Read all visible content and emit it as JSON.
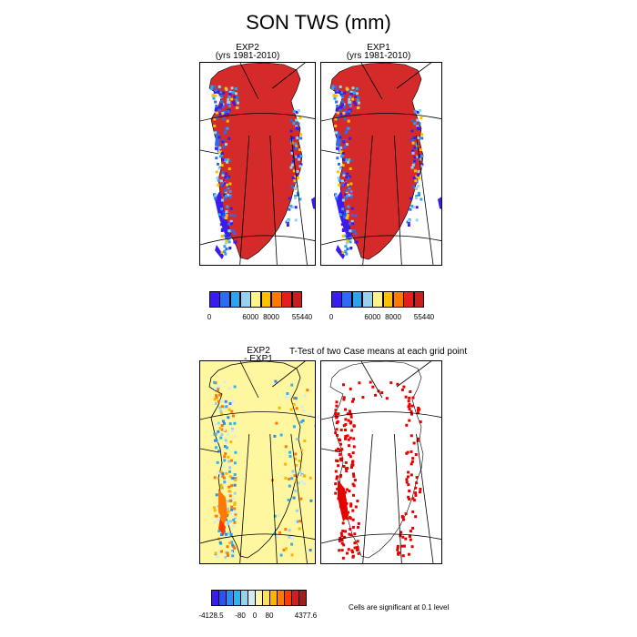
{
  "title": "SON TWS (mm)",
  "panels": {
    "exp2": {
      "title": "EXP2",
      "subtitle": "(yrs 1981-2010)"
    },
    "exp1": {
      "title": "EXP1",
      "subtitle": "(yrs 1981-2010)"
    },
    "diff": {
      "title": "EXP2",
      "subtitle": "- EXP1"
    },
    "ttest": {
      "title": "T-Test of two Case means at each grid point"
    }
  },
  "colors": {
    "ice": "#d42a2a",
    "abs_scale": [
      "#3a1cf0",
      "#2c6cf0",
      "#2ca4f0",
      "#96d2f0",
      "#fff48c",
      "#ffc000",
      "#ff7800",
      "#e61e1e",
      "#c81e1e"
    ],
    "diff_scale": [
      "#3a1cf0",
      "#2c52f0",
      "#2c8cf0",
      "#2cb4f0",
      "#96d2f0",
      "#d2ebf5",
      "#fff8a0",
      "#ffe05a",
      "#ffb400",
      "#ff7800",
      "#ff3c00",
      "#d21e1e",
      "#a01e1e"
    ],
    "diff_base": "#fff7a0",
    "significant": "#e60000"
  },
  "chart_data": [
    {
      "type": "heatmap",
      "name": "EXP2",
      "title": "EXP2",
      "subtitle": "(yrs 1981-2010)",
      "colorbar": {
        "ticks": [
          "0",
          "6000",
          "8000",
          "55440"
        ],
        "min": 0,
        "max": 55440
      }
    },
    {
      "type": "heatmap",
      "name": "EXP1",
      "title": "EXP1",
      "subtitle": "(yrs 1981-2010)",
      "colorbar": {
        "ticks": [
          "0",
          "6000",
          "8000",
          "55440"
        ],
        "min": 0,
        "max": 55440
      }
    },
    {
      "type": "heatmap",
      "name": "EXP2 - EXP1",
      "title": "EXP2",
      "subtitle": "- EXP1",
      "colorbar": {
        "ticks": [
          "-4128.5",
          "-80",
          "0",
          "80",
          "4377.6"
        ],
        "min": -4128.5,
        "max": 4377.6
      }
    },
    {
      "type": "heatmap",
      "name": "T-Test",
      "title": "T-Test of two Case means at each grid point",
      "note": "Cells are significant at 0.1 level"
    }
  ],
  "note": "Cells are significant at 0.1 level"
}
